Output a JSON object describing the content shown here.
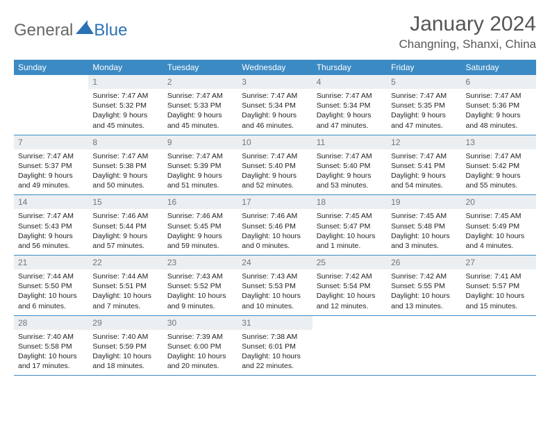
{
  "brand": {
    "general": "General",
    "blue": "Blue"
  },
  "header": {
    "month_title": "January 2024",
    "location": "Changning, Shanxi, China"
  },
  "colors": {
    "header_bg": "#3b8ac4",
    "header_text": "#ffffff",
    "daynum_bg": "#eceff1",
    "daynum_text": "#70757a",
    "row_border": "#3b8ac4",
    "body_text": "#222222",
    "title_text": "#555555",
    "logo_gray": "#666666",
    "logo_blue": "#2a72b5"
  },
  "typography": {
    "title_fontsize": 30,
    "location_fontsize": 17,
    "header_fontsize": 12,
    "daynum_fontsize": 12,
    "cell_fontsize": 10.5
  },
  "layout": {
    "cols": 7,
    "rows": 5,
    "first_weekday_index": 1
  },
  "weekdays": [
    "Sunday",
    "Monday",
    "Tuesday",
    "Wednesday",
    "Thursday",
    "Friday",
    "Saturday"
  ],
  "days": [
    {
      "n": 1,
      "sunrise": "7:47 AM",
      "sunset": "5:32 PM",
      "daylight": "9 hours and 45 minutes."
    },
    {
      "n": 2,
      "sunrise": "7:47 AM",
      "sunset": "5:33 PM",
      "daylight": "9 hours and 45 minutes."
    },
    {
      "n": 3,
      "sunrise": "7:47 AM",
      "sunset": "5:34 PM",
      "daylight": "9 hours and 46 minutes."
    },
    {
      "n": 4,
      "sunrise": "7:47 AM",
      "sunset": "5:34 PM",
      "daylight": "9 hours and 47 minutes."
    },
    {
      "n": 5,
      "sunrise": "7:47 AM",
      "sunset": "5:35 PM",
      "daylight": "9 hours and 47 minutes."
    },
    {
      "n": 6,
      "sunrise": "7:47 AM",
      "sunset": "5:36 PM",
      "daylight": "9 hours and 48 minutes."
    },
    {
      "n": 7,
      "sunrise": "7:47 AM",
      "sunset": "5:37 PM",
      "daylight": "9 hours and 49 minutes."
    },
    {
      "n": 8,
      "sunrise": "7:47 AM",
      "sunset": "5:38 PM",
      "daylight": "9 hours and 50 minutes."
    },
    {
      "n": 9,
      "sunrise": "7:47 AM",
      "sunset": "5:39 PM",
      "daylight": "9 hours and 51 minutes."
    },
    {
      "n": 10,
      "sunrise": "7:47 AM",
      "sunset": "5:40 PM",
      "daylight": "9 hours and 52 minutes."
    },
    {
      "n": 11,
      "sunrise": "7:47 AM",
      "sunset": "5:40 PM",
      "daylight": "9 hours and 53 minutes."
    },
    {
      "n": 12,
      "sunrise": "7:47 AM",
      "sunset": "5:41 PM",
      "daylight": "9 hours and 54 minutes."
    },
    {
      "n": 13,
      "sunrise": "7:47 AM",
      "sunset": "5:42 PM",
      "daylight": "9 hours and 55 minutes."
    },
    {
      "n": 14,
      "sunrise": "7:47 AM",
      "sunset": "5:43 PM",
      "daylight": "9 hours and 56 minutes."
    },
    {
      "n": 15,
      "sunrise": "7:46 AM",
      "sunset": "5:44 PM",
      "daylight": "9 hours and 57 minutes."
    },
    {
      "n": 16,
      "sunrise": "7:46 AM",
      "sunset": "5:45 PM",
      "daylight": "9 hours and 59 minutes."
    },
    {
      "n": 17,
      "sunrise": "7:46 AM",
      "sunset": "5:46 PM",
      "daylight": "10 hours and 0 minutes."
    },
    {
      "n": 18,
      "sunrise": "7:45 AM",
      "sunset": "5:47 PM",
      "daylight": "10 hours and 1 minute."
    },
    {
      "n": 19,
      "sunrise": "7:45 AM",
      "sunset": "5:48 PM",
      "daylight": "10 hours and 3 minutes."
    },
    {
      "n": 20,
      "sunrise": "7:45 AM",
      "sunset": "5:49 PM",
      "daylight": "10 hours and 4 minutes."
    },
    {
      "n": 21,
      "sunrise": "7:44 AM",
      "sunset": "5:50 PM",
      "daylight": "10 hours and 6 minutes."
    },
    {
      "n": 22,
      "sunrise": "7:44 AM",
      "sunset": "5:51 PM",
      "daylight": "10 hours and 7 minutes."
    },
    {
      "n": 23,
      "sunrise": "7:43 AM",
      "sunset": "5:52 PM",
      "daylight": "10 hours and 9 minutes."
    },
    {
      "n": 24,
      "sunrise": "7:43 AM",
      "sunset": "5:53 PM",
      "daylight": "10 hours and 10 minutes."
    },
    {
      "n": 25,
      "sunrise": "7:42 AM",
      "sunset": "5:54 PM",
      "daylight": "10 hours and 12 minutes."
    },
    {
      "n": 26,
      "sunrise": "7:42 AM",
      "sunset": "5:55 PM",
      "daylight": "10 hours and 13 minutes."
    },
    {
      "n": 27,
      "sunrise": "7:41 AM",
      "sunset": "5:57 PM",
      "daylight": "10 hours and 15 minutes."
    },
    {
      "n": 28,
      "sunrise": "7:40 AM",
      "sunset": "5:58 PM",
      "daylight": "10 hours and 17 minutes."
    },
    {
      "n": 29,
      "sunrise": "7:40 AM",
      "sunset": "5:59 PM",
      "daylight": "10 hours and 18 minutes."
    },
    {
      "n": 30,
      "sunrise": "7:39 AM",
      "sunset": "6:00 PM",
      "daylight": "10 hours and 20 minutes."
    },
    {
      "n": 31,
      "sunrise": "7:38 AM",
      "sunset": "6:01 PM",
      "daylight": "10 hours and 22 minutes."
    }
  ]
}
